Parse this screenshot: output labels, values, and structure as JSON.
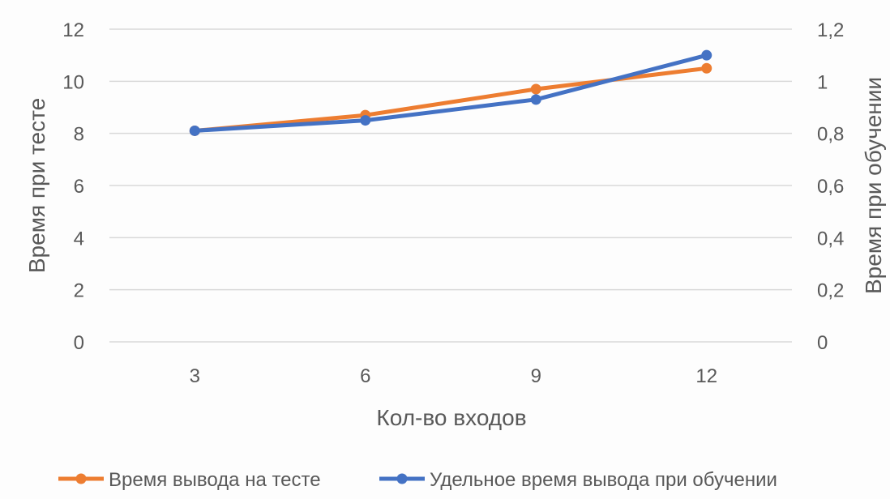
{
  "chart_data": {
    "type": "line",
    "categories": [
      "3",
      "6",
      "9",
      "12"
    ],
    "xlabel": "Кол-во входов",
    "ylabel_left": "Время при тесте",
    "ylabel_right": "Время при обучении",
    "ylim_left": [
      0,
      12
    ],
    "ylim_right": [
      0,
      1.2
    ],
    "yticks_left": [
      "0",
      "2",
      "4",
      "6",
      "8",
      "10",
      "12"
    ],
    "yticks_right": [
      "0",
      "0,2",
      "0,4",
      "0,6",
      "0,8",
      "1",
      "1,2"
    ],
    "grid": true,
    "legend_position": "bottom",
    "series": [
      {
        "name": "Время вывода на тесте",
        "axis": "left",
        "color": "#ed7d31",
        "values": [
          8.1,
          8.7,
          9.7,
          10.5
        ]
      },
      {
        "name": "Удельное время вывода при обучении",
        "axis": "right",
        "color": "#4472c4",
        "values": [
          0.81,
          0.85,
          0.93,
          1.1
        ]
      }
    ]
  }
}
